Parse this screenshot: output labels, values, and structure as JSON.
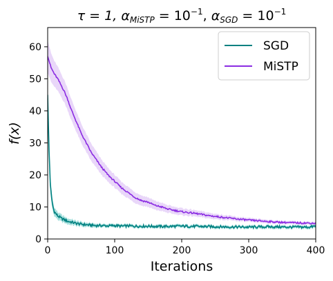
{
  "chart_data": {
    "type": "line",
    "title": {
      "tau": "τ = 1, ",
      "alpha": "α",
      "mistp_sub": "MiSTP",
      "eq1": " = 10",
      "exp1": "−1",
      "sep": ", ",
      "alpha2": "α",
      "sgd_sub": "SGD",
      "eq2": " = 10",
      "exp2": "−1"
    },
    "xlabel": "Iterations",
    "ylabel": "f(x)",
    "xlim": [
      0,
      400
    ],
    "ylim": [
      0,
      66
    ],
    "xticks": [
      0,
      100,
      200,
      300,
      400
    ],
    "yticks": [
      0,
      10,
      20,
      30,
      40,
      50,
      60
    ],
    "grid": false,
    "legend_position": "top-right",
    "series": [
      {
        "name": "SGD",
        "color": "#008080",
        "band_color": "#20b2aa",
        "x": [
          0,
          2,
          4,
          6,
          8,
          10,
          15,
          20,
          25,
          30,
          35,
          40,
          45,
          50,
          55,
          60,
          65,
          70,
          80,
          90,
          100,
          110,
          120,
          130,
          150,
          170,
          200,
          230,
          260,
          300,
          330,
          360,
          390,
          400
        ],
        "y": [
          45,
          28,
          17,
          12.5,
          10,
          8.5,
          7.2,
          6.5,
          6.0,
          5.5,
          5.3,
          5.0,
          4.8,
          4.6,
          4.5,
          4.4,
          4.3,
          4.2,
          4.2,
          4.1,
          4.2,
          4.0,
          4.1,
          4.0,
          4.0,
          3.9,
          4.0,
          3.9,
          3.8,
          3.7,
          3.8,
          3.7,
          3.7,
          4.0
        ],
        "spread": [
          3,
          3,
          2.5,
          2,
          1.5,
          1.3,
          1.2,
          1.1,
          1.0,
          0.9,
          0.9,
          0.8,
          0.8,
          0.7,
          0.7,
          0.6,
          0.6,
          0.6,
          0.5,
          0.5,
          0.5,
          0.5,
          0.5,
          0.5,
          0.5,
          0.5,
          0.5,
          0.5,
          0.5,
          0.5,
          0.5,
          0.5,
          0.5,
          0.5
        ]
      },
      {
        "name": "MiSTP",
        "color": "#8a2be2",
        "band_color": "#c89cf0",
        "x": [
          0,
          5,
          10,
          15,
          20,
          25,
          30,
          35,
          40,
          45,
          50,
          55,
          60,
          65,
          70,
          75,
          80,
          90,
          100,
          110,
          120,
          130,
          140,
          150,
          160,
          170,
          180,
          200,
          220,
          240,
          260,
          280,
          300,
          320,
          340,
          360,
          380,
          400
        ],
        "y": [
          57,
          53.5,
          51.5,
          50,
          48,
          46,
          43.5,
          40.5,
          38,
          35.5,
          33,
          31,
          29,
          27,
          25.5,
          24,
          22.5,
          20,
          18,
          16,
          14.5,
          13,
          12,
          11.5,
          10.5,
          10,
          9.3,
          8.5,
          8,
          7.3,
          6.8,
          6.3,
          5.9,
          5.6,
          5.3,
          5.1,
          5.0,
          4.9
        ],
        "spread": [
          5,
          4.5,
          4,
          3.8,
          3.6,
          3.5,
          3.4,
          3.3,
          3.2,
          3.1,
          3.0,
          2.9,
          2.8,
          2.7,
          2.6,
          2.5,
          2.4,
          2.2,
          2.0,
          1.9,
          1.8,
          1.7,
          1.6,
          1.5,
          1.4,
          1.3,
          1.2,
          1.1,
          1.0,
          0.9,
          0.8,
          0.7,
          0.6,
          0.6,
          0.5,
          0.5,
          0.5,
          0.5
        ]
      }
    ]
  }
}
